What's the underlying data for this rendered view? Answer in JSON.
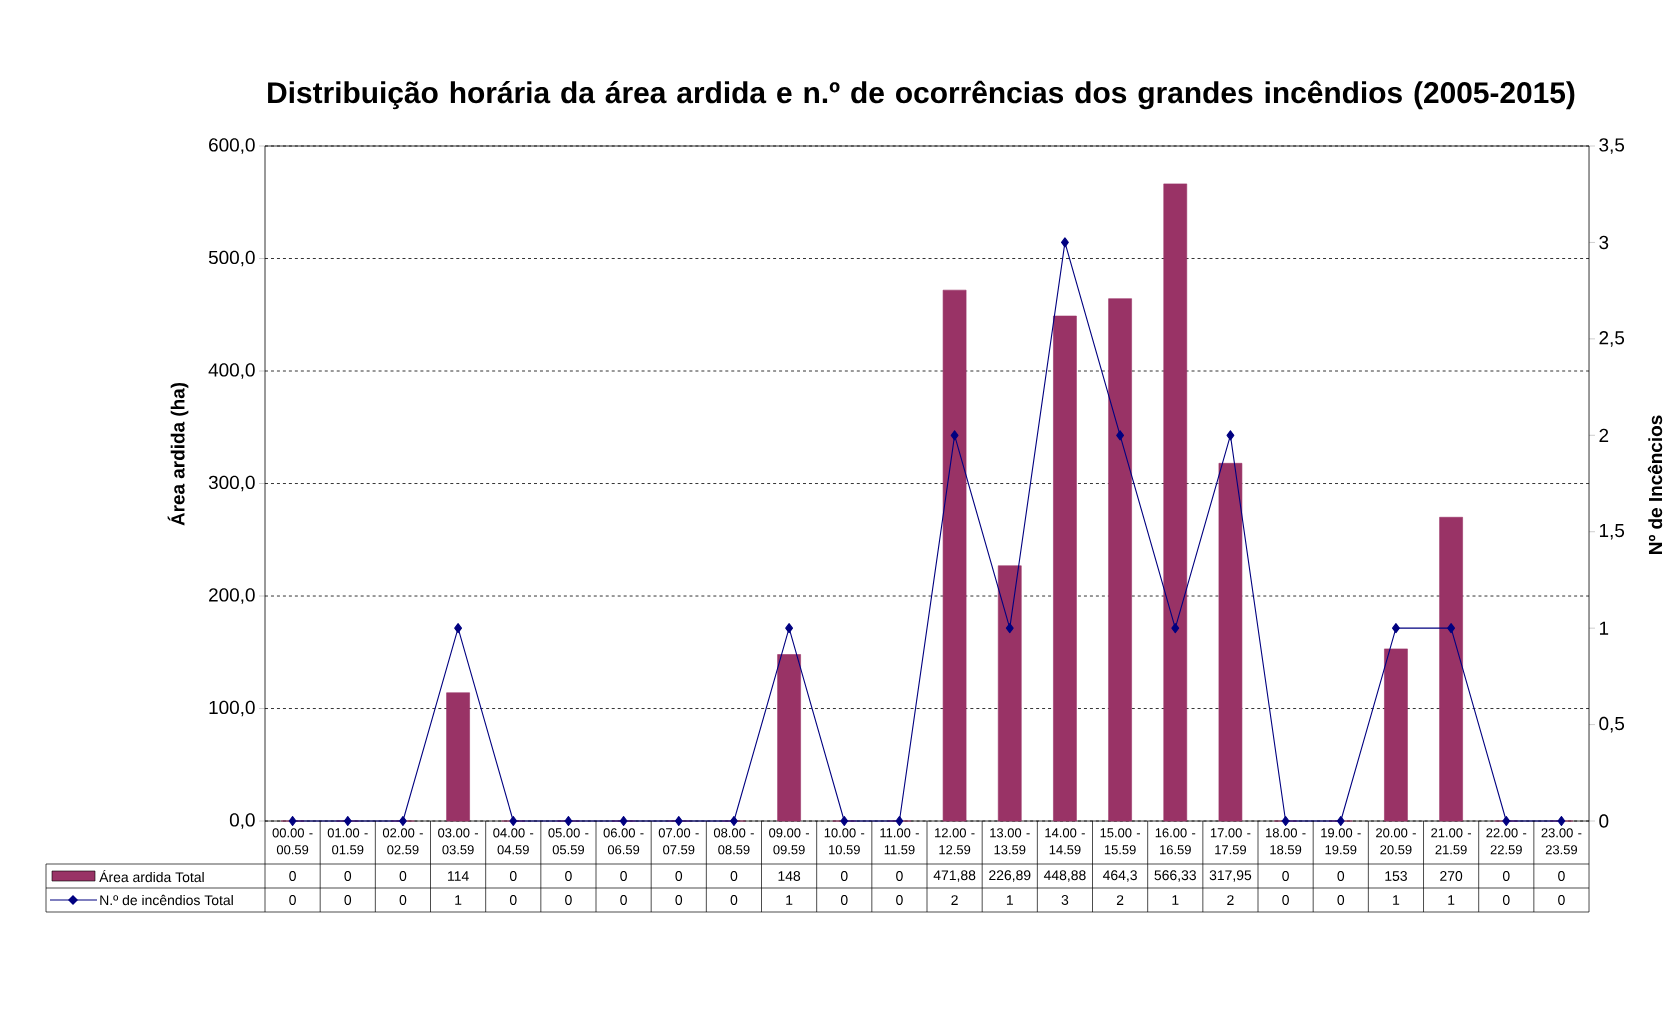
{
  "chart_data": {
    "type": "bar",
    "title": "Distribuição horária da área ardida e n.º de ocorrências dos grandes incêndios (2005-2015)",
    "ylabel": "Área ardida (ha)",
    "y2label": "Nº de Incêncios",
    "categories": [
      "00.00 - 00.59",
      "01.00 - 01.59",
      "02.00 - 02.59",
      "03.00 - 03.59",
      "04.00 - 04.59",
      "05.00 - 05.59",
      "06.00 - 06.59",
      "07.00 - 07.59",
      "08.00 - 08.59",
      "09.00 - 09.59",
      "10.00 - 10.59",
      "11.00 - 11.59",
      "12.00 - 12.59",
      "13.00 - 13.59",
      "14.00 - 14.59",
      "15.00 - 15.59",
      "16.00 - 16.59",
      "17.00 - 17.59",
      "18.00 - 18.59",
      "19.00 - 19.59",
      "20.00 - 20.59",
      "21.00 - 21.59",
      "22.00 - 22.59",
      "23.00 - 23.59"
    ],
    "series": [
      {
        "name": "Área ardida Total",
        "color": "#993366",
        "values": [
          0,
          0,
          0,
          114,
          0,
          0,
          0,
          0,
          0,
          148,
          0,
          0,
          471.88,
          226.89,
          448.88,
          464.3,
          566.33,
          317.95,
          0,
          0,
          153,
          270,
          0,
          0
        ],
        "value_labels": [
          "0",
          "0",
          "0",
          "114",
          "0",
          "0",
          "0",
          "0",
          "0",
          "148",
          "0",
          "0",
          "471,88",
          "226,89",
          "448,88",
          "464,3",
          "566,33",
          "317,95",
          "0",
          "0",
          "153",
          "270",
          "0",
          "0"
        ]
      },
      {
        "name": "N.º de incêndios Total",
        "type": "line",
        "axis": "y2",
        "marker": "diamond",
        "color": "#000080",
        "values": [
          0,
          0,
          0,
          1,
          0,
          0,
          0,
          0,
          0,
          1,
          0,
          0,
          2,
          1,
          3,
          2,
          1,
          2,
          0,
          0,
          1,
          1,
          0,
          0
        ],
        "value_labels": [
          "0",
          "0",
          "0",
          "1",
          "0",
          "0",
          "0",
          "0",
          "0",
          "1",
          "0",
          "0",
          "2",
          "1",
          "3",
          "2",
          "1",
          "2",
          "0",
          "0",
          "1",
          "1",
          "0",
          "0"
        ]
      }
    ],
    "ylim": [
      0,
      600
    ],
    "yticks": [
      {
        "value": 0,
        "label": "0,0"
      },
      {
        "value": 100,
        "label": "100,0"
      },
      {
        "value": 200,
        "label": "200,0"
      },
      {
        "value": 300,
        "label": "300,0"
      },
      {
        "value": 400,
        "label": "400,0"
      },
      {
        "value": 500,
        "label": "500,0"
      },
      {
        "value": 600,
        "label": "600,0"
      }
    ],
    "y2lim": [
      0,
      3.5
    ],
    "y2ticks": [
      0,
      {
        "value": 0.5,
        "label": "0,5"
      },
      1,
      {
        "value": 1.5,
        "label": "1,5"
      },
      2,
      {
        "value": 2.5,
        "label": "2,5"
      },
      3,
      {
        "value": 3.5,
        "label": "3,5"
      }
    ],
    "grid": "y",
    "legend": "bottom"
  }
}
